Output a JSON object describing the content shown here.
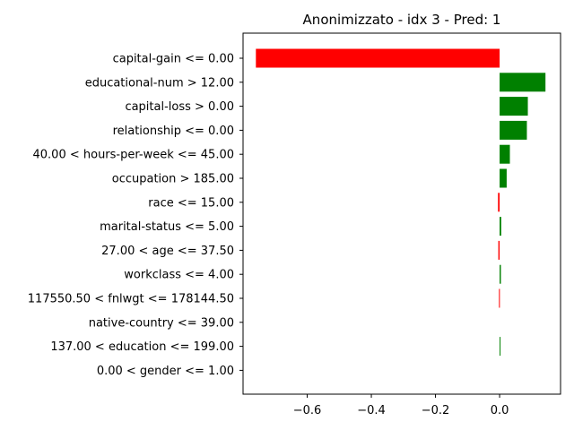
{
  "chart_data": {
    "type": "bar",
    "orientation": "horizontal",
    "title": "Anonimizzato - idx 3 - Pred: 1",
    "xlabel": "",
    "ylabel": "",
    "xlim": [
      -0.8,
      0.19
    ],
    "grid": false,
    "positive_color": "#008000",
    "negative_color": "#ff0000",
    "x_ticks": [
      -0.6,
      -0.4,
      -0.2,
      0.0
    ],
    "x_tick_labels": [
      "−0.6",
      "−0.4",
      "−0.2",
      "0.0"
    ],
    "categories": [
      "capital-gain <= 0.00",
      "educational-num > 12.00",
      "capital-loss > 0.00",
      "relationship <= 0.00",
      "40.00 < hours-per-week <= 45.00",
      "occupation > 185.00",
      "race <= 15.00",
      "marital-status <= 5.00",
      "27.00 < age <= 37.50",
      "workclass <= 4.00",
      "117550.50 < fnlwgt <= 178144.50",
      "native-country <= 39.00",
      "137.00 < education <= 199.00",
      "0.00 < gender <= 1.00"
    ],
    "values": [
      -0.76,
      0.143,
      0.088,
      0.085,
      0.032,
      0.022,
      -0.005,
      0.005,
      -0.004,
      0.004,
      -0.002,
      0.0,
      0.002,
      0.0
    ]
  }
}
